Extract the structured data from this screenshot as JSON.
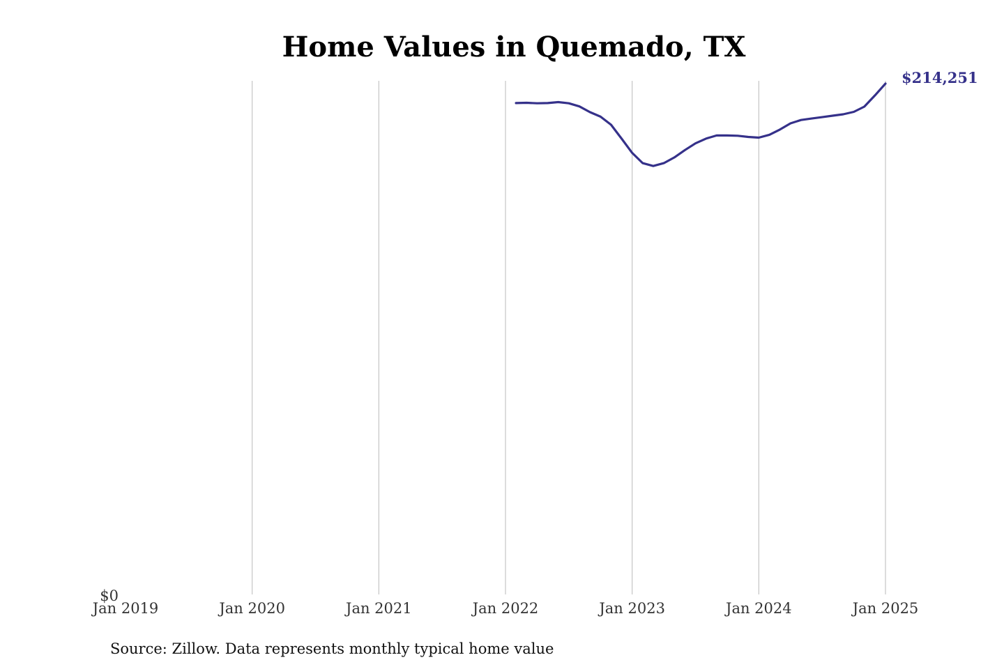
{
  "chart_data": {
    "type": "line",
    "title": "Home Values in Quemado, TX",
    "source": "Source: Zillow. Data represents monthly typical home value",
    "xlabel": "",
    "ylabel": "",
    "x_ticks": [
      "Jan 2019",
      "Jan 2020",
      "Jan 2021",
      "Jan 2022",
      "Jan 2023",
      "Jan 2024",
      "Jan 2025"
    ],
    "y_ticks": [
      "$0"
    ],
    "ylim": [
      0,
      214251
    ],
    "xlim": [
      "2019-01",
      "2025-01"
    ],
    "grid": "vertical",
    "line_color": "#35318a",
    "end_label": "$214,251",
    "series": [
      {
        "name": "Home value",
        "points": [
          {
            "x": "2022-02",
            "y": 206100
          },
          {
            "x": "2022-03",
            "y": 206200
          },
          {
            "x": "2022-04",
            "y": 206000
          },
          {
            "x": "2022-05",
            "y": 206100
          },
          {
            "x": "2022-06",
            "y": 206500
          },
          {
            "x": "2022-07",
            "y": 206000
          },
          {
            "x": "2022-08",
            "y": 204700
          },
          {
            "x": "2022-09",
            "y": 202300
          },
          {
            "x": "2022-10",
            "y": 200400
          },
          {
            "x": "2022-11",
            "y": 197000
          },
          {
            "x": "2022-12",
            "y": 191200
          },
          {
            "x": "2023-01",
            "y": 185200
          },
          {
            "x": "2023-02",
            "y": 180900
          },
          {
            "x": "2023-03",
            "y": 179700
          },
          {
            "x": "2023-04",
            "y": 180900
          },
          {
            "x": "2023-05",
            "y": 183300
          },
          {
            "x": "2023-06",
            "y": 186400
          },
          {
            "x": "2023-07",
            "y": 189200
          },
          {
            "x": "2023-08",
            "y": 191200
          },
          {
            "x": "2023-09",
            "y": 192500
          },
          {
            "x": "2023-10",
            "y": 192500
          },
          {
            "x": "2023-11",
            "y": 192400
          },
          {
            "x": "2023-12",
            "y": 191900
          },
          {
            "x": "2024-01",
            "y": 191600
          },
          {
            "x": "2024-02",
            "y": 192800
          },
          {
            "x": "2024-03",
            "y": 195000
          },
          {
            "x": "2024-04",
            "y": 197600
          },
          {
            "x": "2024-05",
            "y": 199000
          },
          {
            "x": "2024-06",
            "y": 199600
          },
          {
            "x": "2024-07",
            "y": 200200
          },
          {
            "x": "2024-08",
            "y": 200800
          },
          {
            "x": "2024-09",
            "y": 201400
          },
          {
            "x": "2024-10",
            "y": 202400
          },
          {
            "x": "2024-11",
            "y": 204600
          },
          {
            "x": "2024-12",
            "y": 209300
          },
          {
            "x": "2025-01",
            "y": 214251
          }
        ]
      }
    ]
  }
}
